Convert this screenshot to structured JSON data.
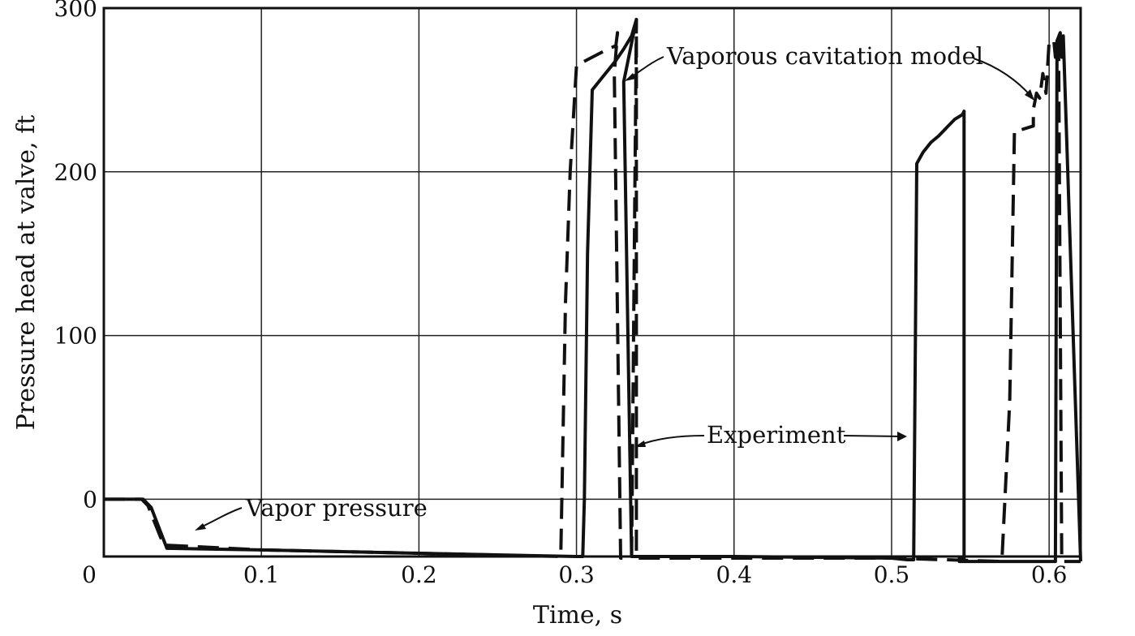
{
  "chart_data": {
    "type": "line",
    "title": "",
    "xlabel": "Time, s",
    "ylabel": "Pressure head at valve, ft",
    "xlim": [
      0,
      0.62
    ],
    "ylim": [
      -35,
      300
    ],
    "grid": true,
    "x_ticks": [
      {
        "value": 0,
        "label": "0"
      },
      {
        "value": 0.1,
        "label": "0.1"
      },
      {
        "value": 0.2,
        "label": "0.2"
      },
      {
        "value": 0.3,
        "label": "0.3"
      },
      {
        "value": 0.4,
        "label": "0.4"
      },
      {
        "value": 0.5,
        "label": "0.5"
      },
      {
        "value": 0.6,
        "label": "0.6"
      }
    ],
    "y_ticks": [
      {
        "value": 0,
        "label": "0"
      },
      {
        "value": 100,
        "label": "100"
      },
      {
        "value": 200,
        "label": "200"
      },
      {
        "value": 300,
        "label": "300"
      }
    ],
    "series": [
      {
        "style": "solid",
        "x": [
          0,
          0.025,
          0.03,
          0.04,
          0.1,
          0.2,
          0.3,
          0.304,
          0.305,
          0.307,
          0.31,
          0.315,
          0.32,
          0.325,
          0.33,
          0.335,
          0.338,
          0.338,
          0.33,
          0.335,
          0.34,
          0.4,
          0.5,
          0.51,
          0.514,
          0.516,
          0.52,
          0.525,
          0.53,
          0.535,
          0.54,
          0.545,
          0.546,
          0.546,
          0.543,
          0.543,
          0.55,
          0.6,
          0.604,
          0.605,
          0.607,
          0.608,
          0.609,
          0.62
        ],
        "y": [
          0,
          0,
          -5,
          -30,
          -31,
          -33,
          -35,
          -35,
          0,
          150,
          250,
          256,
          262,
          268,
          275,
          283,
          293,
          293,
          255,
          -35,
          -35,
          -35,
          -36,
          -37,
          -37,
          205,
          212,
          218,
          222,
          227,
          232,
          235,
          237,
          -36,
          -36,
          -38,
          -38,
          -38,
          -38,
          280,
          285,
          270,
          283,
          -38
        ]
      },
      {
        "style": "dashed",
        "x": [
          0,
          0.024,
          0.028,
          0.038,
          0.1,
          0.2,
          0.29,
          0.293,
          0.296,
          0.3,
          0.31,
          0.32,
          0.325,
          0.326,
          0.324,
          0.328,
          0.335,
          0.338,
          0.338,
          0.4,
          0.5,
          0.57,
          0.575,
          0.578,
          0.58,
          0.59,
          0.59,
          0.592,
          0.594,
          0.596,
          0.598,
          0.6,
          0.603,
          0.604,
          0.606,
          0.608,
          0.62
        ],
        "y": [
          0,
          0,
          -4,
          -28,
          -31,
          -33,
          -35,
          120,
          200,
          265,
          270,
          275,
          277,
          285,
          260,
          -36,
          -36,
          293,
          -36,
          -36,
          -36,
          -38,
          60,
          225,
          225,
          228,
          238,
          248,
          245,
          260,
          248,
          280,
          280,
          270,
          280,
          -38,
          -38
        ]
      }
    ],
    "annotations": [
      {
        "text": "Vaporous cavitation model"
      },
      {
        "text": "Experiment"
      },
      {
        "text": "Vapor pressure"
      }
    ]
  }
}
